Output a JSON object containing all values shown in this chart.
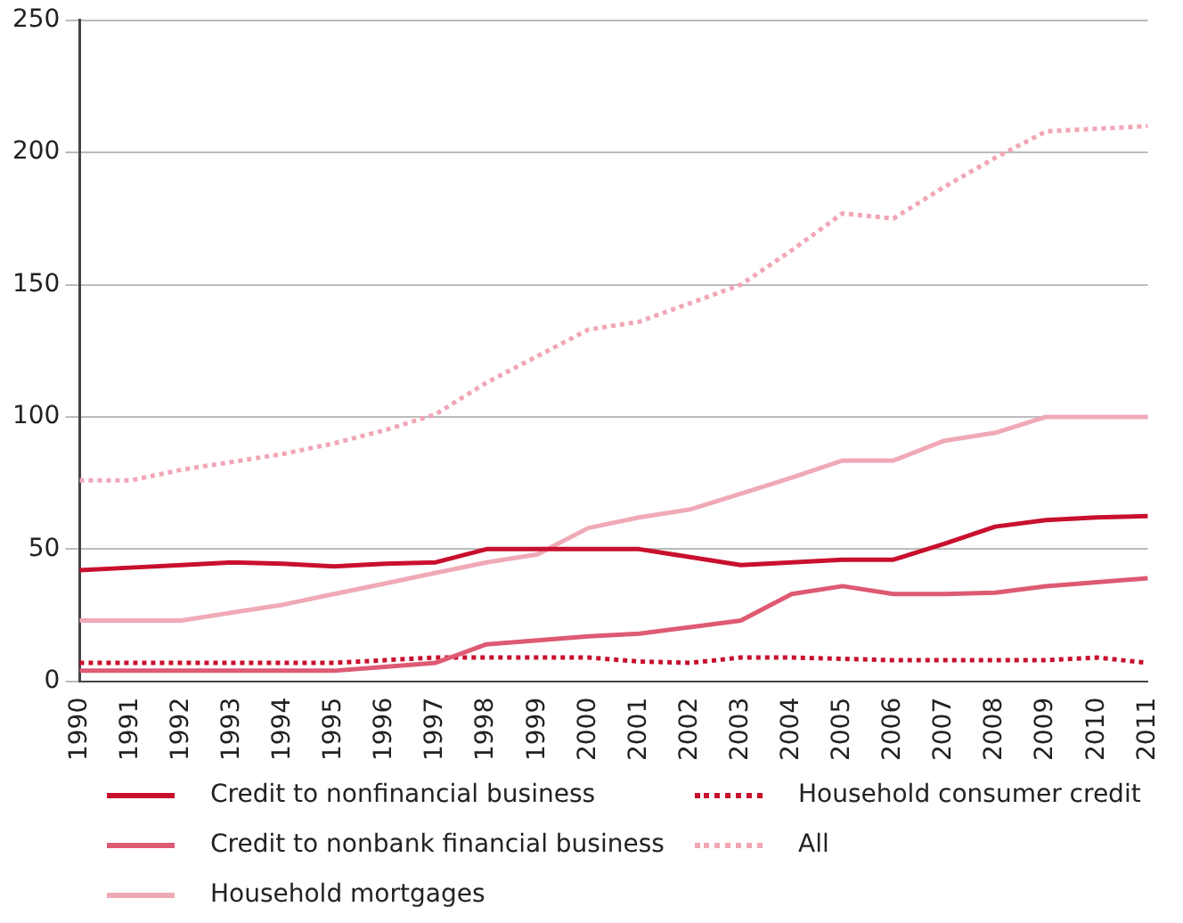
{
  "chart_data": {
    "type": "line",
    "categories": [
      "1990",
      "1991",
      "1992",
      "1993",
      "1994",
      "1995",
      "1996",
      "1997",
      "1998",
      "1999",
      "2000",
      "2001",
      "2002",
      "2003",
      "2004",
      "2005",
      "2006",
      "2007",
      "2008",
      "2009",
      "2010",
      "2011"
    ],
    "series": [
      {
        "name": "Credit to nonfinancial business",
        "color": "#c8102e",
        "line_style": "solid",
        "values": [
          42,
          43,
          44,
          45,
          44.5,
          43.5,
          44.5,
          45,
          50,
          50,
          50,
          50,
          47,
          44,
          45,
          46,
          46,
          52,
          58.5,
          61,
          62,
          62.5
        ]
      },
      {
        "name": "Credit to nonbank financial business",
        "color": "#de5a73",
        "line_style": "solid",
        "values": [
          4,
          4,
          4,
          4,
          4,
          4,
          5.5,
          7,
          14,
          15.5,
          17,
          18,
          20.5,
          23,
          33,
          36,
          33,
          33,
          33.5,
          36,
          37.5,
          39
        ]
      },
      {
        "name": "Household mortgages",
        "color": "#f0a9b6",
        "line_style": "solid",
        "values": [
          23,
          23,
          23,
          26,
          29,
          33,
          37,
          41,
          45,
          48,
          58,
          62,
          65,
          71,
          77,
          83.5,
          83.5,
          91,
          94,
          100,
          100,
          100
        ]
      },
      {
        "name": "Household consumer credit",
        "color": "#c8102e",
        "line_style": "dotted",
        "values": [
          7,
          7,
          7,
          7,
          7,
          7,
          8,
          9,
          9,
          9,
          9,
          7.5,
          7,
          9,
          9,
          8.5,
          8,
          8,
          8,
          8,
          9,
          7
        ]
      },
      {
        "name": "All",
        "color": "#f2a6b5",
        "line_style": "dotted",
        "values": [
          76,
          76,
          80,
          83,
          86,
          90,
          95,
          101,
          113,
          123,
          133,
          136,
          143,
          150,
          163,
          177,
          175,
          187,
          198,
          208,
          209,
          210
        ]
      }
    ],
    "ylim": [
      0,
      250
    ],
    "yticks": [
      0,
      50,
      100,
      150,
      200,
      250
    ],
    "grid": "y",
    "legend": "bottom",
    "marker": "none"
  }
}
